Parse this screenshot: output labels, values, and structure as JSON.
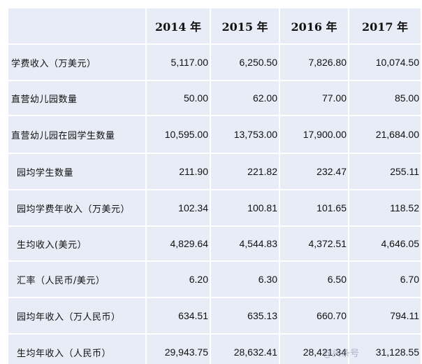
{
  "table": {
    "headers": [
      "",
      "2014 年",
      "2015 年",
      "2016 年",
      "2017 年"
    ],
    "rows": [
      {
        "label": "学费收入（万美元）",
        "values": [
          "5,117.00",
          "6,250.50",
          "7,826.80",
          "10,074.50"
        ]
      },
      {
        "label": "直营幼儿园数量",
        "values": [
          "50.00",
          "62.00",
          "77.00",
          "85.00"
        ]
      },
      {
        "label": "直营幼儿园在园学生数量",
        "values": [
          "10,595.00",
          "13,753.00",
          "17,900.00",
          "21,684.00"
        ]
      },
      {
        "label": "园均学生数量",
        "values": [
          "211.90",
          "221.82",
          "232.47",
          "255.11"
        ]
      },
      {
        "label": "园均学费年收入（万美元）",
        "values": [
          "102.34",
          "100.81",
          "101.65",
          "118.52"
        ]
      },
      {
        "label": "生均收入(美元）",
        "values": [
          "4,829.64",
          "4,544.83",
          "4,372.51",
          "4,646.05"
        ]
      },
      {
        "label": "汇率（人民币/美元）",
        "values": [
          "6.20",
          "6.30",
          "6.50",
          "6.70"
        ]
      },
      {
        "label": "园均年收入（万人民币）",
        "values": [
          "634.51",
          "635.13",
          "660.70",
          "794.11"
        ]
      },
      {
        "label": "生均年收入（人民币）",
        "values": [
          "29,943.75",
          "28,632.41",
          "28,421.34",
          "31,128.55"
        ]
      }
    ]
  },
  "watermark": "@头条号"
}
